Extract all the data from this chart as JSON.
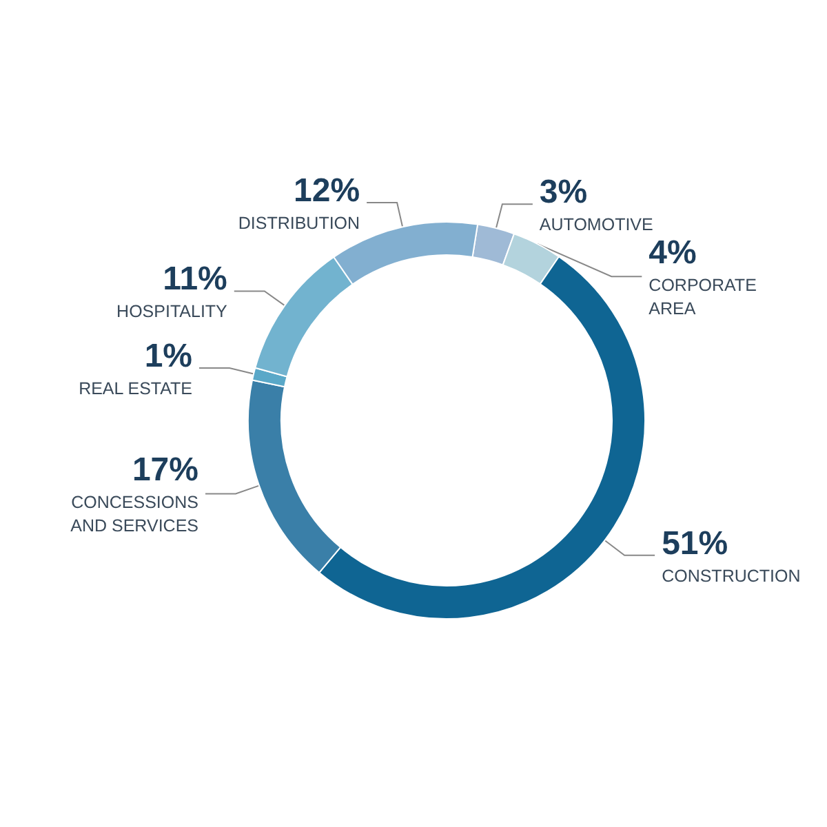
{
  "chart_data": {
    "type": "donut",
    "categories": [
      "AUTOMOTIVE",
      "CORPORATE AREA",
      "CONSTRUCTION",
      "CONCESSIONS AND SERVICES",
      "REAL ESTATE",
      "HOSPITALITY",
      "DISTRIBUTION"
    ],
    "values": [
      3,
      4,
      51,
      17,
      1,
      11,
      12
    ],
    "value_labels": [
      "3%",
      "4%",
      "51%",
      "17%",
      "1%",
      "11%",
      "12%"
    ],
    "colors": [
      "#9fbad6",
      "#b3d3dd",
      "#0f6593",
      "#3a7fa8",
      "#5aa8c8",
      "#72b3cf",
      "#82afd0"
    ],
    "legend": false
  }
}
